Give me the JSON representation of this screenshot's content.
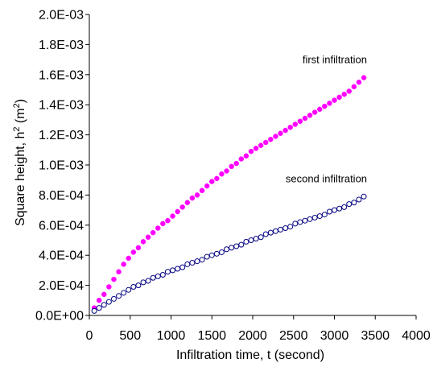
{
  "chart_data": {
    "type": "scatter",
    "title": "",
    "xlabel": "Infiltration time, t (second)",
    "ylabel": {
      "base": "Square height, h",
      "sup": "2",
      "unit": " (m",
      "unit_sup": "2",
      "close": ")"
    },
    "xlim": [
      0,
      4000
    ],
    "ylim": [
      0,
      0.002
    ],
    "xticks": [
      0,
      500,
      1000,
      1500,
      2000,
      2500,
      3000,
      3500,
      4000
    ],
    "xtick_labels": [
      "0",
      "500",
      "1000",
      "1500",
      "2000",
      "2500",
      "3000",
      "3500",
      "4000"
    ],
    "yticks": [
      0,
      0.0002,
      0.0004,
      0.0006,
      0.0008,
      0.001,
      0.0012,
      0.0014,
      0.0016,
      0.0018,
      0.002
    ],
    "ytick_labels": [
      "0.0E+00",
      "2.0E-04",
      "4.0E-04",
      "6.0E-04",
      "8.0E-04",
      "1.0E-03",
      "1.2E-03",
      "1.4E-03",
      "1.6E-03",
      "1.8E-03",
      "2.0E-03"
    ],
    "grid": false,
    "legend": "none",
    "series": [
      {
        "name": "first infiltration",
        "marker": "filled-circle",
        "color": "#ff00ff",
        "x": [
          60,
          120,
          180,
          240,
          300,
          360,
          420,
          480,
          540,
          600,
          660,
          720,
          780,
          840,
          900,
          960,
          1020,
          1080,
          1140,
          1200,
          1260,
          1320,
          1380,
          1440,
          1500,
          1560,
          1620,
          1680,
          1740,
          1800,
          1860,
          1920,
          1980,
          2040,
          2100,
          2160,
          2220,
          2280,
          2340,
          2400,
          2460,
          2520,
          2580,
          2640,
          2700,
          2760,
          2820,
          2880,
          2940,
          3000,
          3060,
          3120,
          3180,
          3240,
          3300,
          3360
        ],
        "y": [
          5e-05,
          0.0001,
          0.00014,
          0.00019,
          0.00024,
          0.00029,
          0.00034,
          0.00038,
          0.00042,
          0.00045,
          0.00049,
          0.00052,
          0.00055,
          0.00058,
          0.00061,
          0.00063,
          0.00066,
          0.00069,
          0.00072,
          0.00075,
          0.00078,
          0.0008,
          0.00083,
          0.00086,
          0.00089,
          0.00091,
          0.00094,
          0.00096,
          0.00099,
          0.00101,
          0.00104,
          0.00106,
          0.00109,
          0.00111,
          0.00113,
          0.00115,
          0.00117,
          0.00119,
          0.00121,
          0.00123,
          0.00125,
          0.00127,
          0.00129,
          0.00131,
          0.00133,
          0.00135,
          0.00137,
          0.00139,
          0.00141,
          0.00143,
          0.00145,
          0.00147,
          0.00149,
          0.00152,
          0.00155,
          0.00158
        ]
      },
      {
        "name": "second infiltration",
        "marker": "open-circle",
        "color": "#000080",
        "x": [
          60,
          120,
          180,
          240,
          300,
          360,
          420,
          480,
          540,
          600,
          660,
          720,
          780,
          840,
          900,
          960,
          1020,
          1080,
          1140,
          1200,
          1260,
          1320,
          1380,
          1440,
          1500,
          1560,
          1620,
          1680,
          1740,
          1800,
          1860,
          1920,
          1980,
          2040,
          2100,
          2160,
          2220,
          2280,
          2340,
          2400,
          2460,
          2520,
          2580,
          2640,
          2700,
          2760,
          2820,
          2880,
          2940,
          3000,
          3060,
          3120,
          3180,
          3240,
          3300,
          3360
        ],
        "y": [
          3e-05,
          5e-05,
          7e-05,
          9e-05,
          0.00011,
          0.00013,
          0.00015,
          0.00017,
          0.00019,
          0.0002,
          0.00022,
          0.00023,
          0.00025,
          0.00026,
          0.00027,
          0.00029,
          0.0003,
          0.00031,
          0.00032,
          0.00034,
          0.00035,
          0.00036,
          0.00037,
          0.00039,
          0.0004,
          0.00041,
          0.00042,
          0.00044,
          0.00045,
          0.00046,
          0.00047,
          0.00049,
          0.0005,
          0.00051,
          0.00052,
          0.00054,
          0.00055,
          0.00056,
          0.00057,
          0.00058,
          0.00059,
          0.00061,
          0.00062,
          0.00063,
          0.00064,
          0.00065,
          0.00066,
          0.00067,
          0.00069,
          0.0007,
          0.00071,
          0.00072,
          0.00074,
          0.00075,
          0.00077,
          0.00079
        ]
      }
    ],
    "annotations": [
      {
        "text": "first infiltration",
        "series": 0
      },
      {
        "text": "second infiltration",
        "series": 1
      }
    ]
  }
}
